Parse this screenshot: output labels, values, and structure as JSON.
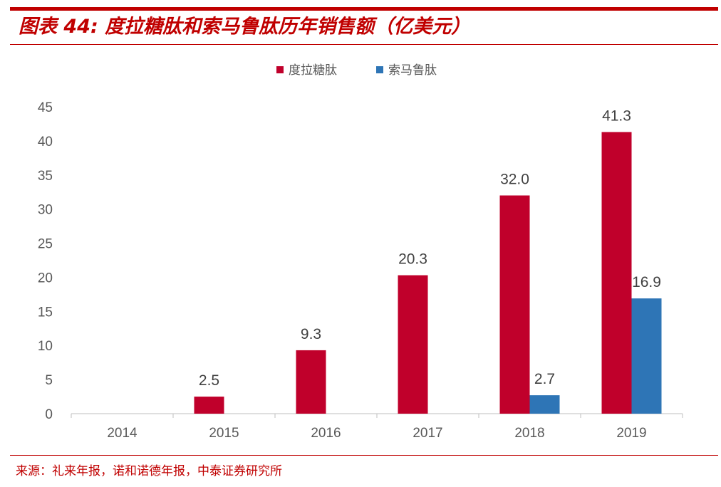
{
  "title": "图表 44: 度拉糖肽和索马鲁肽历年销售额（亿美元）",
  "source": "来源：礼来年报，诺和诺德年报，中泰证券研究所",
  "colors": {
    "accent": "#c00000",
    "series1": "#c0002b",
    "series2": "#2e75b6"
  },
  "chart_data": {
    "type": "bar",
    "categories": [
      "2014",
      "2015",
      "2016",
      "2017",
      "2018",
      "2019"
    ],
    "series": [
      {
        "name": "度拉糖肽",
        "values": [
          0,
          2.5,
          9.3,
          20.3,
          32.0,
          41.3
        ],
        "labels": [
          "",
          "2.5",
          "9.3",
          "20.3",
          "32.0",
          "41.3"
        ]
      },
      {
        "name": "索马鲁肽",
        "values": [
          0,
          0,
          0,
          0,
          2.7,
          16.9
        ],
        "labels": [
          "",
          "",
          "",
          "",
          "2.7",
          "16.9"
        ]
      }
    ],
    "yticks": [
      "0",
      "5",
      "10",
      "15",
      "20",
      "25",
      "30",
      "35",
      "40",
      "45"
    ],
    "ylim": [
      0,
      45
    ],
    "grid": false,
    "legend": "top-center"
  }
}
